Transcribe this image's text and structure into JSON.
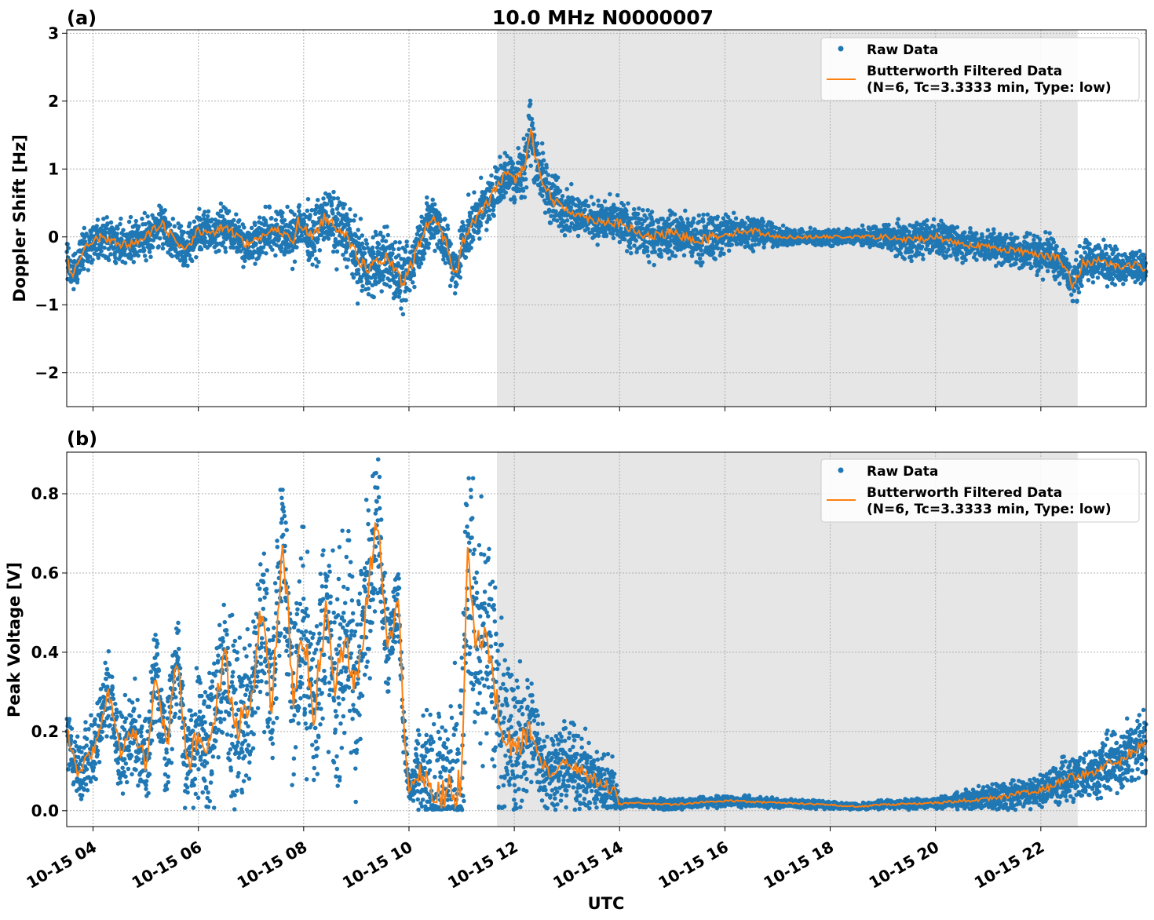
{
  "figure": {
    "title": "10.0 MHz N0000007",
    "xlabel": "UTC",
    "x_ticks": [
      "10-15 04",
      "10-15 06",
      "10-15 08",
      "10-15 10",
      "10-15 12",
      "10-15 14",
      "10-15 16",
      "10-15 18",
      "10-15 20",
      "10-15 22"
    ]
  },
  "colors": {
    "raw": "#1f77b4",
    "filtered": "#ff7f0e",
    "shade": "#e6e6e6",
    "grid": "#b0b0b0"
  },
  "chart_data": [
    {
      "type": "scatter",
      "panel_label": "(a)",
      "title": "10.0 MHz N0000007",
      "xlabel": "",
      "ylabel": "Doppler Shift [Hz]",
      "x_unit": "UTC hour of 2024-10-15",
      "xlim": [
        3.5,
        24.0
      ],
      "ylim": [
        -2.5,
        3.05
      ],
      "y_ticks": [
        "−2",
        "−1",
        "0",
        "1",
        "2",
        "3"
      ],
      "grid": true,
      "legend_position": "top-right",
      "legend": [
        "Raw Data",
        "Butterworth Filtered Data",
        "(N=6, Tc=3.3333 min, Type: low)"
      ],
      "shaded_span": [
        11.67,
        22.7
      ],
      "filtered_series": {
        "name": "Butterworth Filtered Data",
        "x": [
          3.5,
          3.6,
          3.8,
          4.0,
          4.2,
          4.5,
          4.8,
          5.0,
          5.3,
          5.5,
          5.7,
          5.8,
          6.0,
          6.2,
          6.5,
          6.7,
          6.9,
          7.2,
          7.4,
          7.6,
          7.8,
          7.9,
          8.0,
          8.2,
          8.4,
          8.6,
          8.8,
          9.0,
          9.2,
          9.4,
          9.6,
          9.8,
          9.9,
          10.0,
          10.3,
          10.5,
          10.7,
          10.9,
          11.0,
          11.2,
          11.5,
          11.7,
          11.9,
          12.0,
          12.1,
          12.2,
          12.3,
          12.5,
          12.7,
          13.0,
          13.5,
          14.0,
          14.5,
          15.0,
          15.5,
          16.0,
          16.5,
          17.0,
          17.5,
          18.0,
          18.5,
          19.0,
          19.5,
          20.0,
          20.5,
          21.0,
          21.5,
          22.0,
          22.3,
          22.5,
          22.6,
          22.8,
          23.0,
          23.2,
          23.5,
          23.8,
          24.0
        ],
        "y": [
          -0.3,
          -0.6,
          -0.2,
          -0.05,
          0.0,
          -0.1,
          -0.1,
          0.0,
          0.2,
          0.0,
          -0.2,
          -0.15,
          0.1,
          0.05,
          0.15,
          0.05,
          -0.1,
          0.0,
          0.1,
          0.05,
          -0.05,
          0.25,
          0.1,
          0.0,
          0.3,
          0.15,
          0.1,
          -0.3,
          -0.45,
          -0.4,
          -0.3,
          -0.6,
          -0.7,
          -0.5,
          0.1,
          0.3,
          -0.1,
          -0.6,
          -0.1,
          0.2,
          0.5,
          0.8,
          0.95,
          0.85,
          0.9,
          1.1,
          1.6,
          0.9,
          0.55,
          0.4,
          0.25,
          0.2,
          0.0,
          0.05,
          -0.05,
          0.05,
          0.1,
          0.0,
          0.0,
          0.0,
          0.0,
          0.0,
          -0.05,
          0.0,
          -0.1,
          -0.15,
          -0.2,
          -0.25,
          -0.3,
          -0.5,
          -0.75,
          -0.4,
          -0.35,
          -0.35,
          -0.45,
          -0.4,
          -0.5
        ]
      },
      "raw_series": {
        "name": "Raw Data",
        "spread_x": [
          3.5,
          7.5,
          9.0,
          11.0,
          11.8,
          12.3,
          12.8,
          13.2,
          14.0,
          16.0,
          17.0,
          18.5,
          19.5,
          21.0,
          22.7,
          24.0
        ],
        "spread_y": [
          0.25,
          0.3,
          0.45,
          0.35,
          0.3,
          0.45,
          0.35,
          0.25,
          0.3,
          0.3,
          0.12,
          0.1,
          0.25,
          0.2,
          0.3,
          0.2
        ]
      }
    },
    {
      "type": "scatter",
      "panel_label": "(b)",
      "xlabel": "UTC",
      "ylabel": "Peak Voltage [V]",
      "x_unit": "UTC hour of 2024-10-15",
      "xlim": [
        3.5,
        24.0
      ],
      "ylim": [
        -0.04,
        0.905
      ],
      "y_ticks": [
        "0.0",
        "0.2",
        "0.4",
        "0.6",
        "0.8"
      ],
      "grid": true,
      "legend_position": "top-right",
      "legend": [
        "Raw Data",
        "Butterworth Filtered Data",
        "(N=6, Tc=3.3333 min, Type: low)"
      ],
      "shaded_span": [
        11.67,
        22.7
      ],
      "filtered_series": {
        "name": "Butterworth Filtered Data",
        "x": [
          3.5,
          3.7,
          4.0,
          4.3,
          4.5,
          4.8,
          5.0,
          5.2,
          5.4,
          5.6,
          5.8,
          6.0,
          6.2,
          6.5,
          6.7,
          6.9,
          7.0,
          7.2,
          7.4,
          7.6,
          7.8,
          8.0,
          8.2,
          8.4,
          8.6,
          8.8,
          9.0,
          9.2,
          9.4,
          9.6,
          9.8,
          9.9,
          10.0,
          10.2,
          10.5,
          10.8,
          11.0,
          11.1,
          11.3,
          11.5,
          11.7,
          12.0,
          12.3,
          12.6,
          13.0,
          13.5,
          13.9,
          14.0,
          14.2,
          15.0,
          16.0,
          17.0,
          18.0,
          18.5,
          19.0,
          20.0,
          21.0,
          22.0,
          22.5,
          23.0,
          23.5,
          24.0
        ],
        "y": [
          0.2,
          0.1,
          0.15,
          0.3,
          0.15,
          0.2,
          0.12,
          0.35,
          0.15,
          0.4,
          0.1,
          0.2,
          0.15,
          0.4,
          0.2,
          0.25,
          0.3,
          0.5,
          0.25,
          0.7,
          0.3,
          0.45,
          0.25,
          0.5,
          0.3,
          0.45,
          0.3,
          0.55,
          0.75,
          0.4,
          0.55,
          0.2,
          0.05,
          0.1,
          0.05,
          0.04,
          0.05,
          0.7,
          0.4,
          0.45,
          0.25,
          0.15,
          0.2,
          0.1,
          0.12,
          0.08,
          0.05,
          0.015,
          0.02,
          0.015,
          0.025,
          0.02,
          0.015,
          0.01,
          0.015,
          0.02,
          0.03,
          0.05,
          0.08,
          0.1,
          0.13,
          0.17
        ]
      },
      "raw_series": {
        "name": "Raw Data",
        "spread_x": [
          3.5,
          5.0,
          7.0,
          9.0,
          10.0,
          11.0,
          11.5,
          12.5,
          13.9,
          14.0,
          16.0,
          18.5,
          20.0,
          22.0,
          24.0
        ],
        "spread_y": [
          0.08,
          0.1,
          0.2,
          0.25,
          0.04,
          0.3,
          0.25,
          0.1,
          0.07,
          0.01,
          0.012,
          0.008,
          0.012,
          0.04,
          0.08
        ]
      }
    }
  ]
}
